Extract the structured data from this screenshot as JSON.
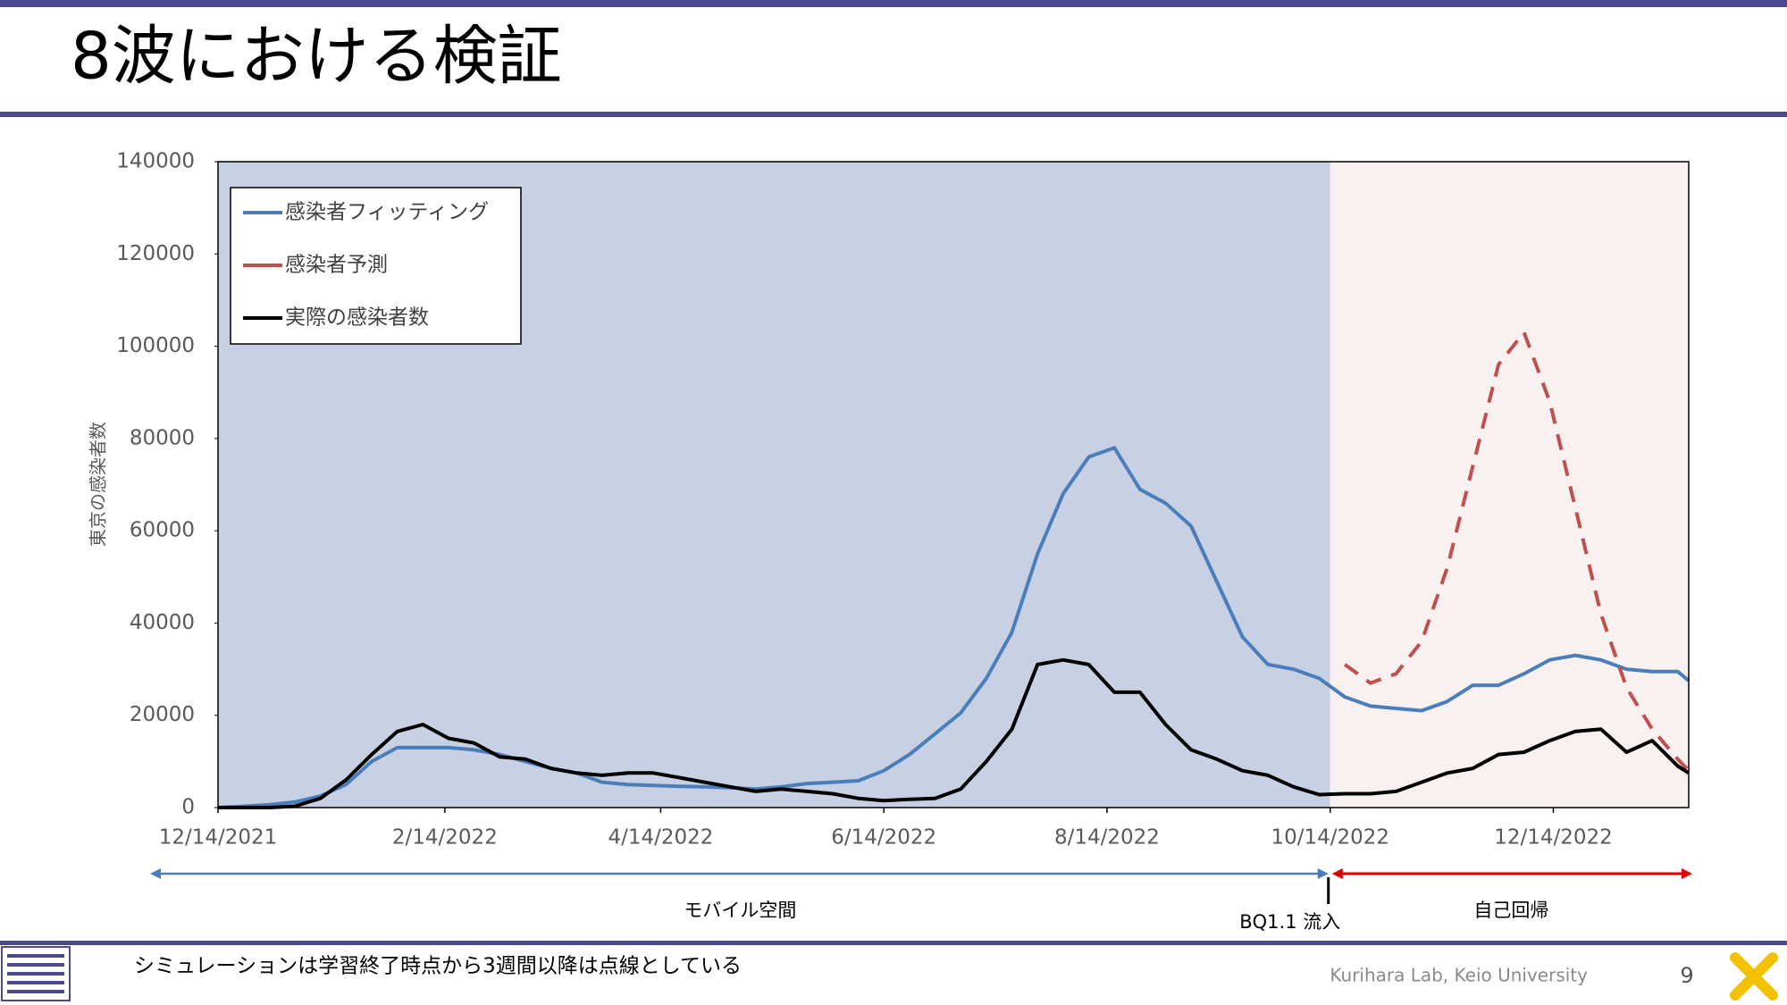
{
  "slide": {
    "title": "8波における検証",
    "footnote": "シミュレーションは学習終了時点から3週間以降は点線としている",
    "credit": "Kurihara Lab, Keio University",
    "page_number": 9
  },
  "chart_data": {
    "type": "line",
    "y_label": "東京の感染者数",
    "x": [
      "12/14/2021",
      "12/21/2021",
      "12/28/2021",
      "1/4/2022",
      "1/11/2022",
      "1/18/2022",
      "1/25/2022",
      "2/1/2022",
      "2/8/2022",
      "2/15/2022",
      "2/22/2022",
      "3/1/2022",
      "3/8/2022",
      "3/15/2022",
      "3/22/2022",
      "3/29/2022",
      "4/5/2022",
      "4/12/2022",
      "4/19/2022",
      "4/26/2022",
      "5/3/2022",
      "5/10/2022",
      "5/17/2022",
      "5/24/2022",
      "5/31/2022",
      "6/7/2022",
      "6/14/2022",
      "6/21/2022",
      "6/28/2022",
      "7/5/2022",
      "7/12/2022",
      "7/19/2022",
      "7/26/2022",
      "8/2/2022",
      "8/9/2022",
      "8/16/2022",
      "8/23/2022",
      "8/30/2022",
      "9/6/2022",
      "9/13/2022",
      "9/20/2022",
      "9/27/2022",
      "10/4/2022",
      "10/11/2022",
      "10/18/2022",
      "10/25/2022",
      "11/1/2022",
      "11/8/2022",
      "11/15/2022",
      "11/22/2022",
      "11/29/2022",
      "12/6/2022",
      "12/13/2022",
      "12/20/2022",
      "12/27/2022",
      "1/3/2023",
      "1/10/2023",
      "1/17/2023",
      "1/20/2023"
    ],
    "series": [
      {
        "name": "感染者フィッティング",
        "color": "#4a7ebb",
        "style": "solid",
        "values": [
          0,
          300,
          600,
          1200,
          2500,
          5000,
          10000,
          13000,
          13000,
          13000,
          12500,
          11500,
          10000,
          8500,
          7500,
          5500,
          5000,
          4800,
          4600,
          4500,
          4300,
          4000,
          4500,
          5200,
          5500,
          5800,
          8000,
          11500,
          16000,
          20500,
          28000,
          38000,
          55000,
          68000,
          76000,
          78000,
          69000,
          66000,
          61000,
          49000,
          37000,
          31000,
          30000,
          28000,
          24000,
          22000,
          21500,
          21000,
          23000,
          26500,
          26500,
          29000,
          32000,
          33000,
          32000,
          30000,
          29500,
          29500,
          27500
        ]
      },
      {
        "name": "感染者予測",
        "color": "#c0504d",
        "style": "dashed",
        "values": [
          null,
          null,
          null,
          null,
          null,
          null,
          null,
          null,
          null,
          null,
          null,
          null,
          null,
          null,
          null,
          null,
          null,
          null,
          null,
          null,
          null,
          null,
          null,
          null,
          null,
          null,
          null,
          null,
          null,
          null,
          null,
          null,
          null,
          null,
          null,
          null,
          null,
          null,
          null,
          null,
          null,
          null,
          null,
          null,
          31000,
          27000,
          29000,
          36000,
          52000,
          74000,
          96000,
          103000,
          88000,
          65000,
          42000,
          26000,
          17000,
          10500,
          8000
        ]
      },
      {
        "name": "実際の感染者数",
        "color": "#000000",
        "style": "solid",
        "values": [
          0,
          0,
          0,
          300,
          2000,
          6000,
          11500,
          16500,
          18000,
          15000,
          14000,
          11000,
          10500,
          8500,
          7500,
          7000,
          7500,
          7500,
          6500,
          5500,
          4500,
          3500,
          4000,
          3500,
          3000,
          2000,
          1500,
          1800,
          2000,
          4000,
          10000,
          17000,
          31000,
          32000,
          31000,
          25000,
          25000,
          18000,
          12500,
          10500,
          8000,
          7000,
          4500,
          2800,
          3000,
          3000,
          3500,
          5500,
          7500,
          8500,
          11500,
          12000,
          14500,
          16500,
          17000,
          12000,
          14500,
          9000,
          7500
        ]
      }
    ],
    "xlim": [
      "12/14/2021",
      "1/20/2023"
    ],
    "xticks": [
      "12/14/2021",
      "2/14/2022",
      "4/14/2022",
      "6/14/2022",
      "8/14/2022",
      "10/14/2022",
      "12/14/2022"
    ],
    "ylim": [
      0,
      140000
    ],
    "yticks": [
      0,
      20000,
      40000,
      60000,
      80000,
      100000,
      120000,
      140000
    ],
    "legend": "upper left",
    "annotations": [
      "モバイル空間",
      "BQ1.1 流入",
      "自己回帰"
    ]
  }
}
